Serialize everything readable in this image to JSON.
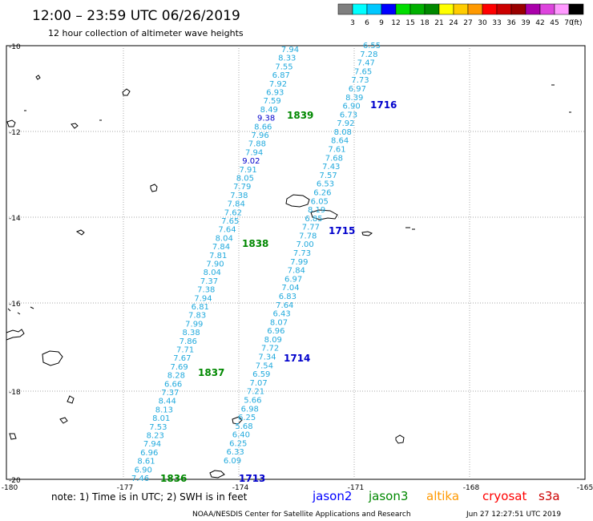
{
  "header": {
    "title": "12:00 – 23:59 UTC 06/26/2019",
    "subtitle": "12 hour collection of altimeter wave heights"
  },
  "colorbar": {
    "colors": [
      "#7f7f7f",
      "#00ffff",
      "#00c8ff",
      "#0000ff",
      "#00dd00",
      "#00b000",
      "#008800",
      "#ffff00",
      "#ffcc00",
      "#ff9900",
      "#ff0000",
      "#cc0000",
      "#990000",
      "#aa00aa",
      "#dd44dd",
      "#ff99ff",
      "#000000"
    ],
    "labels": [
      "3",
      "6",
      "9",
      "12",
      "15",
      "18",
      "21",
      "24",
      "27",
      "30",
      "33",
      "36",
      "39",
      "42",
      "45",
      "70"
    ],
    "unit": "(ft)"
  },
  "axes": {
    "lat_labels": [
      "-10",
      "-12",
      "-14",
      "-16",
      "-18",
      "-20"
    ],
    "lon_labels": [
      "-180",
      "-177",
      "-174",
      "-171",
      "-168",
      "-165"
    ]
  },
  "tracks": [
    {
      "name": "track-1839",
      "time": "1839",
      "time_color": "#008800",
      "values": [
        "7.94",
        "8.33",
        "7.55",
        "6.87",
        "7.92",
        "6.93",
        "7.59",
        "8.49",
        "9.38",
        "8.66",
        "7.96",
        "7.88",
        "7.94",
        "9.02",
        "7.91",
        "8.05",
        "7.79",
        "7.38",
        "7.84",
        "7.62",
        "7.65",
        "7.64",
        "8.04",
        "7.84",
        "7.81",
        "7.90",
        "8.04",
        "7.37",
        "7.38",
        "7.94",
        "6.81",
        "7.83",
        "7.99",
        "8.38",
        "7.86",
        "7.71",
        "7.67",
        "7.69",
        "8.28",
        "6.66",
        "7.37",
        "8.44",
        "8.13",
        "8.01",
        "7.53",
        "8.23",
        "7.94",
        "6.96",
        "8.61",
        "6.90",
        "7.46"
      ],
      "value_colors": {
        "8": "#0000cc",
        "13": "#0000cc"
      }
    },
    {
      "name": "track-1716",
      "time": "1716",
      "time_color": "#0000cc",
      "values": [
        "6.55",
        "7.28",
        "7.47",
        "7.65",
        "7.73",
        "6.97",
        "8.39",
        "6.90",
        "6.73",
        "7.92",
        "8.08",
        "8.64",
        "7.61",
        "7.68",
        "7.43",
        "7.57",
        "6.53",
        "6.26",
        "6.05",
        "8.19",
        "6.85",
        "7.77",
        "7.78",
        "7.00",
        "7.73",
        "7.99",
        "7.84",
        "6.97",
        "7.04",
        "6.83",
        "7.64",
        "6.43",
        "8.07",
        "6.96",
        "8.09",
        "7.72",
        "7.34",
        "7.54",
        "6.59",
        "7.07",
        "7.21",
        "5.66",
        "6.98",
        "6.25",
        "5.68",
        "6.40",
        "6.25",
        "6.33",
        "6.09"
      ],
      "value_colors": {}
    }
  ],
  "time_labels": [
    {
      "text": "1839",
      "color": "#008800"
    },
    {
      "text": "1716",
      "color": "#0000cc"
    },
    {
      "text": "1838",
      "color": "#008800"
    },
    {
      "text": "1715",
      "color": "#0000cc"
    },
    {
      "text": "1714",
      "color": "#0000cc"
    },
    {
      "text": "1837",
      "color": "#008800"
    },
    {
      "text": "1836",
      "color": "#008800"
    },
    {
      "text": "1713",
      "color": "#0000cc"
    }
  ],
  "footer": {
    "note": "note:  1) Time is in UTC;  2) SWH is in feet",
    "missions": [
      {
        "name": "jason2",
        "color": "#0000ff"
      },
      {
        "name": "jason3",
        "color": "#008800"
      },
      {
        "name": "altika",
        "color": "#ff9900"
      },
      {
        "name": "cryosat",
        "color": "#ff0000"
      },
      {
        "name": "s3a",
        "color": "#cc0000"
      }
    ],
    "credit": "NOAA/NESDIS Center for Satellite Applications and Research",
    "timestamp": "Jun 27 12:27:51 UTC 2019"
  },
  "styles": {
    "track_value_color": "#22aadd"
  }
}
